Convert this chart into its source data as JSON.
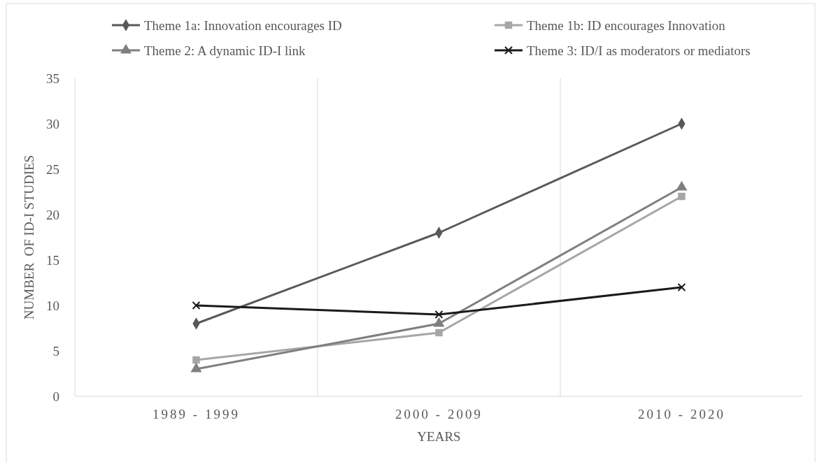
{
  "chart_data": {
    "type": "line",
    "xlabel": "YEARS",
    "ylabel": "NUMBER  OF ID-I STUDIES",
    "categories": [
      "1989 - 1999",
      "2000 - 2009",
      "2010 - 2020"
    ],
    "series": [
      {
        "name": "Theme 1a: Innovation encourages ID",
        "color": "#595959",
        "marker": "diamond",
        "values": [
          8,
          18,
          30
        ]
      },
      {
        "name": "Theme 1b: ID encourages Innovation",
        "color": "#a6a6a6",
        "marker": "square",
        "values": [
          4,
          7,
          22
        ]
      },
      {
        "name": "Theme 2: A dynamic ID-I link",
        "color": "#7f7f7f",
        "marker": "triangle",
        "values": [
          3,
          8,
          23
        ]
      },
      {
        "name": "Theme 3: ID/I as moderators or mediators",
        "color": "#1a1a1a",
        "marker": "cross",
        "values": [
          10,
          9,
          12
        ]
      }
    ],
    "ylim": [
      0,
      35
    ],
    "yticks": [
      0,
      5,
      10,
      15,
      20,
      25,
      30,
      35
    ],
    "grid": "x",
    "legend": "top",
    "line_style": "solid"
  }
}
